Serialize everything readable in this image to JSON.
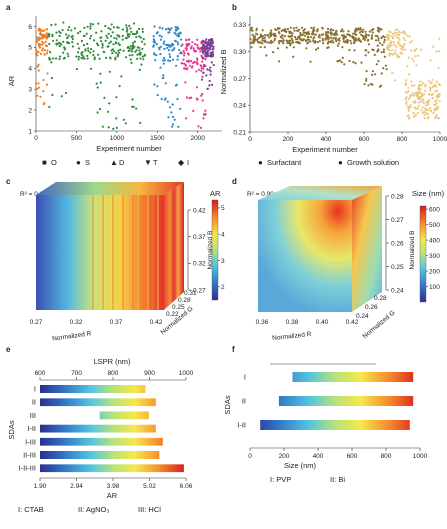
{
  "panels": {
    "a": {
      "letter": "a",
      "xlabel": "Experiment number",
      "ylabel": "AR",
      "xticks": [
        "0",
        "500",
        "1000",
        "1500",
        "2000"
      ],
      "yticks": [
        "1",
        "2",
        "3",
        "4",
        "5",
        "6"
      ],
      "legend": [
        {
          "marker": "■",
          "label": "O",
          "color": "#ee7d23"
        },
        {
          "marker": "●",
          "label": "S",
          "color": "#2e8b3c"
        },
        {
          "marker": "▲",
          "label": "D",
          "color": "#2a86c7"
        },
        {
          "marker": "▼",
          "label": "T",
          "color": "#e6388d"
        },
        {
          "marker": "◆",
          "label": "I",
          "color": "#7b3f98"
        }
      ]
    },
    "b": {
      "letter": "b",
      "xlabel": "Experiment number",
      "ylabel": "Normalized B",
      "xticks": [
        "0",
        "200",
        "400",
        "600",
        "800",
        "1000"
      ],
      "yticks": [
        "0.21",
        "0.24",
        "0.27",
        "0.30",
        "0.33"
      ],
      "legend": [
        {
          "marker": "●",
          "label": "Surfactant",
          "color": "#8a6f2e"
        },
        {
          "marker": "●",
          "label": "Growth solution",
          "color": "#ebc77a"
        }
      ]
    },
    "c": {
      "letter": "c",
      "r2": "R² = 0.94",
      "xlabel": "Normalized R",
      "ylabel": "Normalized G",
      "zlabel": "Normalized B",
      "xticks": [
        "0.27",
        "0.32",
        "0.37",
        "0.42"
      ],
      "yticks": [
        "0.22",
        "0.25",
        "0.28",
        "0.31"
      ],
      "zticks": [
        "0.27",
        "0.32",
        "0.37",
        "0.42"
      ],
      "cbar_title": "AR",
      "cbar_ticks": [
        "2",
        "3",
        "4",
        "5"
      ]
    },
    "d": {
      "letter": "d",
      "r2": "R² = 0.90",
      "xlabel": "Normalized R",
      "ylabel": "Normalized G",
      "zlabel": "Normalized B",
      "xticks": [
        "0.36",
        "0.38",
        "0.40",
        "0.42"
      ],
      "yticks": [
        "0.24",
        "0.26",
        "0.28"
      ],
      "zticks": [
        "0.24",
        "0.25",
        "0.26",
        "0.27",
        "0.28"
      ],
      "cbar_title": "Size (nm)",
      "cbar_ticks": [
        "100",
        "200",
        "300",
        "400",
        "500",
        "600"
      ]
    },
    "e": {
      "letter": "e",
      "top_axis_label": "LSPR (nm)",
      "top_ticks": [
        "600",
        "700",
        "800",
        "900",
        "1000"
      ],
      "xlabel": "AR",
      "xticks": [
        "1.90",
        "2.94",
        "3.98",
        "5.02",
        "6.06"
      ],
      "ylabel": "SDAs",
      "rows": [
        "I",
        "II",
        "III",
        "I-II",
        "I-III",
        "II-III",
        "I-II-III"
      ],
      "footer": [
        "I: CTAB",
        "II: AgNO₃",
        "III: HCl"
      ]
    },
    "f": {
      "letter": "f",
      "xlabel": "Size (nm)",
      "xticks": [
        "0",
        "200",
        "400",
        "600",
        "800",
        "1000"
      ],
      "ylabel": "SDAs",
      "rows": [
        "I",
        "II",
        "I-II"
      ],
      "footer": [
        "I: PVP",
        "II: Bi"
      ]
    }
  },
  "chart_data": [
    {
      "type": "scatter",
      "panel": "a",
      "xlabel": "Experiment number",
      "ylabel": "AR",
      "xlim": [
        0,
        2300
      ],
      "ylim": [
        1,
        6.5
      ],
      "series": [
        {
          "name": "O",
          "color": "#ee7d23",
          "x_range": [
            0,
            150
          ],
          "y_range": [
            2.2,
            5.9
          ]
        },
        {
          "name": "S",
          "color": "#2e8b3c",
          "x_range": [
            150,
            1350
          ],
          "y_range": [
            1.1,
            6.2
          ]
        },
        {
          "name": "D",
          "color": "#2a86c7",
          "x_range": [
            1450,
            1800
          ],
          "y_range": [
            1.2,
            6.0
          ]
        },
        {
          "name": "T",
          "color": "#e6388d",
          "x_range": [
            1800,
            2100
          ],
          "y_range": [
            1.0,
            5.4
          ]
        },
        {
          "name": "I",
          "color": "#7b3f98",
          "x_range": [
            2050,
            2200
          ],
          "y_range": [
            3.0,
            5.4
          ]
        }
      ]
    },
    {
      "type": "scatter",
      "panel": "b",
      "xlabel": "Experiment number",
      "ylabel": "Normalized B",
      "xlim": [
        0,
        1000
      ],
      "ylim": [
        0.21,
        0.34
      ],
      "series": [
        {
          "name": "Surfactant",
          "color": "#8a6f2e",
          "x_range": [
            0,
            720
          ],
          "y_range": [
            0.26,
            0.335
          ]
        },
        {
          "name": "Growth solution",
          "color": "#ebc77a",
          "x_range": [
            720,
            1000
          ],
          "y_range": [
            0.22,
            0.33
          ]
        }
      ]
    },
    {
      "type": "heatmap",
      "panel": "c",
      "title": "R² = 0.94",
      "colorbar": "AR",
      "color_range": [
        1.5,
        5.3
      ]
    },
    {
      "type": "heatmap",
      "panel": "d",
      "title": "R² = 0.90",
      "colorbar": "Size (nm)",
      "color_range": [
        0,
        620
      ]
    },
    {
      "type": "bar",
      "panel": "e",
      "orientation": "horizontal",
      "xlabel": "AR",
      "xlim": [
        1.9,
        6.06
      ],
      "categories": [
        "I",
        "II",
        "III",
        "I-II",
        "I-III",
        "II-III",
        "I-II-III"
      ],
      "ranges": [
        [
          1.9,
          4.9
        ],
        [
          1.9,
          5.2
        ],
        [
          3.6,
          5.0
        ],
        [
          1.9,
          5.2
        ],
        [
          1.9,
          5.4
        ],
        [
          1.9,
          5.3
        ],
        [
          1.9,
          6.0
        ]
      ]
    },
    {
      "type": "bar",
      "panel": "f",
      "orientation": "horizontal",
      "xlabel": "Size (nm)",
      "xlim": [
        0,
        1000
      ],
      "categories": [
        "I",
        "II",
        "I-II"
      ],
      "ranges": [
        [
          250,
          960
        ],
        [
          170,
          960
        ],
        [
          60,
          940
        ]
      ]
    }
  ]
}
